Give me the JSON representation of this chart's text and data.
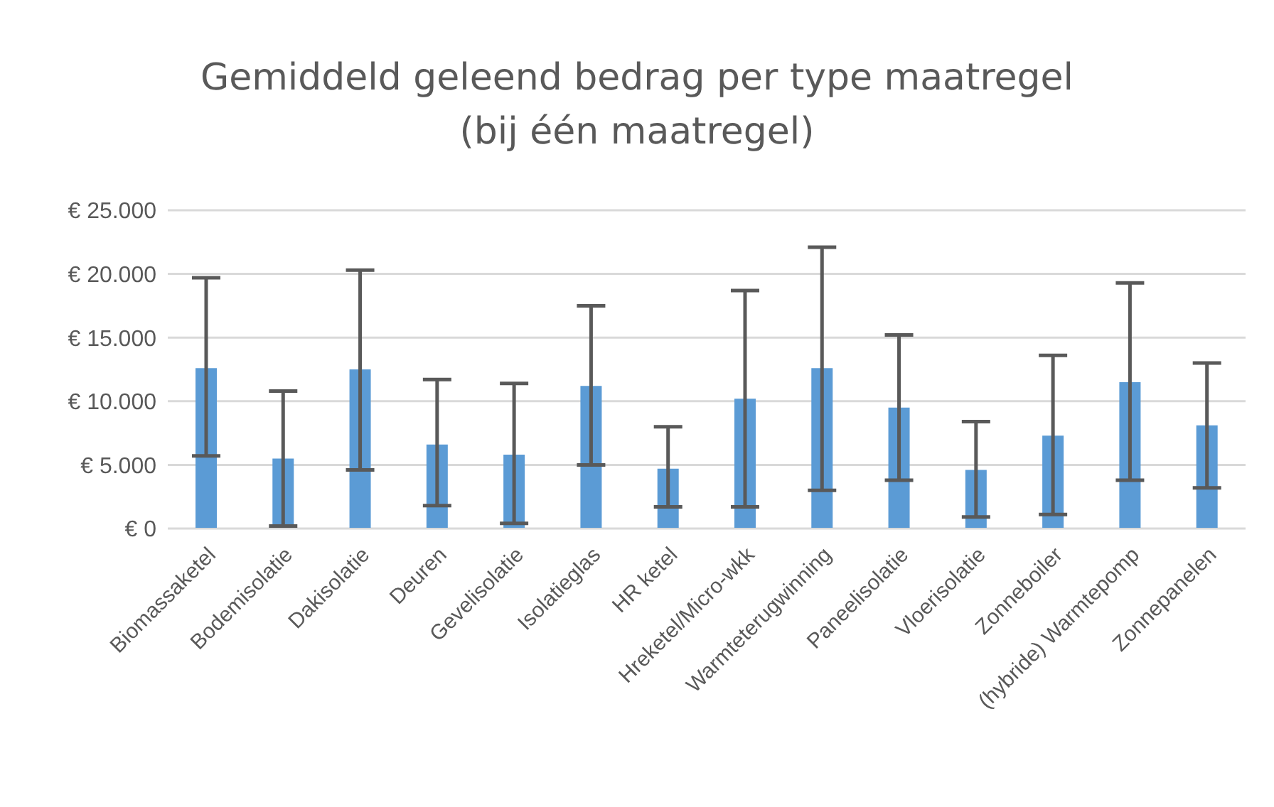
{
  "chart_data": {
    "type": "bar",
    "title": "Gemiddeld geleend bedrag per type maatregel\n(bij één maatregel)",
    "categories": [
      "Biomassaketel",
      "Bodemisolatie",
      "Dakisolatie",
      "Deuren",
      "Gevelisolatie",
      "Isolatieglas",
      "HR ketel",
      "Hreketel/Micro-wkk",
      "Warmteterugwinning",
      "Paneelisolatie",
      "Vloerisolatie",
      "Zonneboiler",
      "(hybride) Warmtepomp",
      "Zonnepanelen"
    ],
    "values": [
      12600,
      5500,
      12500,
      6600,
      5800,
      11200,
      4700,
      10200,
      12600,
      9500,
      4600,
      7300,
      11500,
      8100
    ],
    "errors": [
      [
        5700,
        19700
      ],
      [
        200,
        10800
      ],
      [
        4600,
        20300
      ],
      [
        1800,
        11700
      ],
      [
        400,
        11400
      ],
      [
        5000,
        17500
      ],
      [
        1700,
        8000
      ],
      [
        1700,
        18700
      ],
      [
        3000,
        22100
      ],
      [
        3800,
        15200
      ],
      [
        900,
        8400
      ],
      [
        1100,
        13600
      ],
      [
        3800,
        19300
      ],
      [
        3200,
        13000
      ]
    ],
    "color": "#5b9bd5",
    "ylim": [
      0,
      25000
    ],
    "yticks": [
      {
        "value": 0,
        "label": "€ 0"
      },
      {
        "value": 5000,
        "label": "€ 5.000"
      },
      {
        "value": 10000,
        "label": "€ 10.000"
      },
      {
        "value": 15000,
        "label": "€ 15.000"
      },
      {
        "value": 20000,
        "label": "€ 20.000"
      },
      {
        "value": 25000,
        "label": "€ 25.000"
      }
    ],
    "grid": "y"
  }
}
